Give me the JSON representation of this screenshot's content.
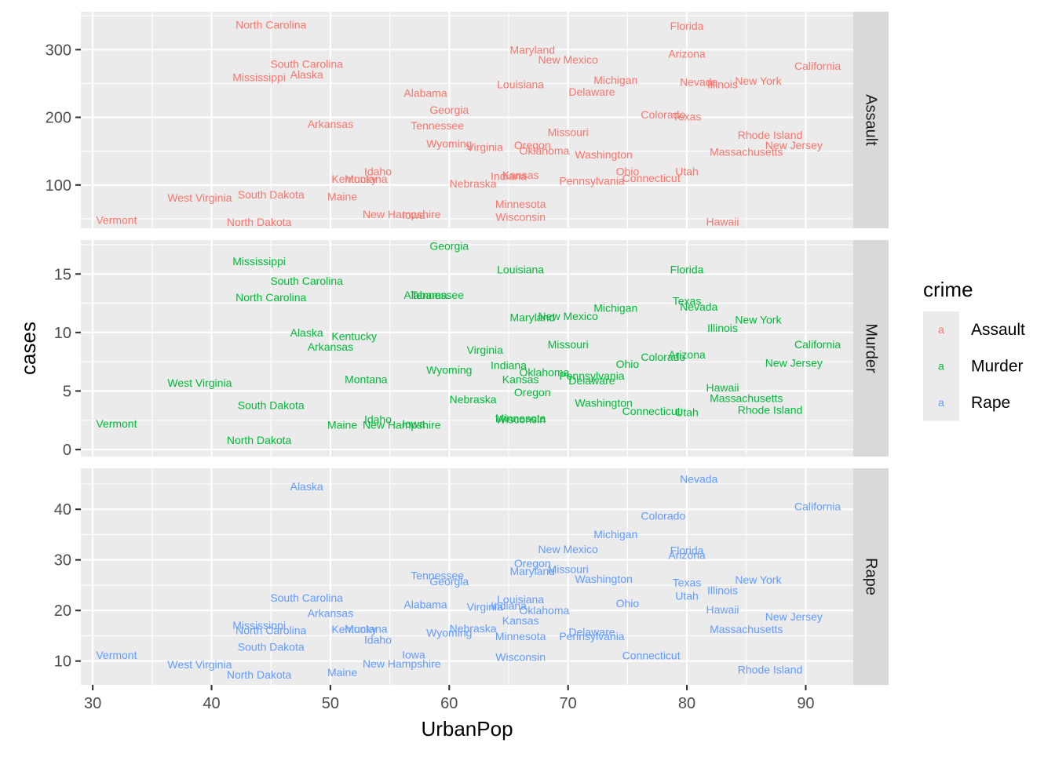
{
  "chart_data": {
    "type": "scatter",
    "geom": "text",
    "facet_by": "crime",
    "xlabel": "UrbanPop",
    "ylabel": "cases",
    "xlim": [
      29,
      94
    ],
    "x_ticks": [
      30,
      40,
      50,
      60,
      70,
      80,
      90
    ],
    "legend": {
      "title": "crime",
      "placement": "right",
      "key_glyph": "a",
      "entries": [
        {
          "name": "Assault",
          "color": "#F8766D"
        },
        {
          "name": "Murder",
          "color": "#00BA38"
        },
        {
          "name": "Rape",
          "color": "#619CFF"
        }
      ]
    },
    "panels": [
      {
        "strip": "Assault",
        "color": "#F8766D",
        "ylim": [
          36,
          356
        ],
        "y_ticks": [
          100,
          200,
          300
        ],
        "points": [
          {
            "label": "Alabama",
            "x": 58,
            "y": 236
          },
          {
            "label": "Alaska",
            "x": 48,
            "y": 263
          },
          {
            "label": "Arizona",
            "x": 80,
            "y": 294
          },
          {
            "label": "Arkansas",
            "x": 50,
            "y": 190
          },
          {
            "label": "California",
            "x": 91,
            "y": 276
          },
          {
            "label": "Colorado",
            "x": 78,
            "y": 204
          },
          {
            "label": "Connecticut",
            "x": 77,
            "y": 110
          },
          {
            "label": "Delaware",
            "x": 72,
            "y": 238
          },
          {
            "label": "Florida",
            "x": 80,
            "y": 335
          },
          {
            "label": "Georgia",
            "x": 60,
            "y": 211
          },
          {
            "label": "Hawaii",
            "x": 83,
            "y": 46
          },
          {
            "label": "Idaho",
            "x": 54,
            "y": 120
          },
          {
            "label": "Illinois",
            "x": 83,
            "y": 249
          },
          {
            "label": "Indiana",
            "x": 65,
            "y": 113
          },
          {
            "label": "Iowa",
            "x": 57,
            "y": 56
          },
          {
            "label": "Kansas",
            "x": 66,
            "y": 115
          },
          {
            "label": "Kentucky",
            "x": 52,
            "y": 109
          },
          {
            "label": "Louisiana",
            "x": 66,
            "y": 249
          },
          {
            "label": "Maine",
            "x": 51,
            "y": 83
          },
          {
            "label": "Maryland",
            "x": 67,
            "y": 300
          },
          {
            "label": "Massachusetts",
            "x": 85,
            "y": 149
          },
          {
            "label": "Michigan",
            "x": 74,
            "y": 255
          },
          {
            "label": "Minnesota",
            "x": 66,
            "y": 72
          },
          {
            "label": "Mississippi",
            "x": 44,
            "y": 259
          },
          {
            "label": "Missouri",
            "x": 70,
            "y": 178
          },
          {
            "label": "Montana",
            "x": 53,
            "y": 109
          },
          {
            "label": "Nebraska",
            "x": 62,
            "y": 102
          },
          {
            "label": "Nevada",
            "x": 81,
            "y": 252
          },
          {
            "label": "New Hampshire",
            "x": 56,
            "y": 57
          },
          {
            "label": "New Jersey",
            "x": 89,
            "y": 159
          },
          {
            "label": "New Mexico",
            "x": 70,
            "y": 285
          },
          {
            "label": "New York",
            "x": 86,
            "y": 254
          },
          {
            "label": "North Carolina",
            "x": 45,
            "y": 337
          },
          {
            "label": "North Dakota",
            "x": 44,
            "y": 45
          },
          {
            "label": "Ohio",
            "x": 75,
            "y": 120
          },
          {
            "label": "Oklahoma",
            "x": 68,
            "y": 151
          },
          {
            "label": "Oregon",
            "x": 67,
            "y": 159
          },
          {
            "label": "Pennsylvania",
            "x": 72,
            "y": 106
          },
          {
            "label": "Rhode Island",
            "x": 87,
            "y": 174
          },
          {
            "label": "South Carolina",
            "x": 48,
            "y": 279
          },
          {
            "label": "South Dakota",
            "x": 45,
            "y": 86
          },
          {
            "label": "Tennessee",
            "x": 59,
            "y": 188
          },
          {
            "label": "Texas",
            "x": 80,
            "y": 201
          },
          {
            "label": "Utah",
            "x": 80,
            "y": 120
          },
          {
            "label": "Vermont",
            "x": 32,
            "y": 48
          },
          {
            "label": "Virginia",
            "x": 63,
            "y": 156
          },
          {
            "label": "Washington",
            "x": 73,
            "y": 145
          },
          {
            "label": "West Virginia",
            "x": 39,
            "y": 81
          },
          {
            "label": "Wisconsin",
            "x": 66,
            "y": 53
          },
          {
            "label": "Wyoming",
            "x": 60,
            "y": 161
          }
        ]
      },
      {
        "strip": "Murder",
        "color": "#00BA38",
        "ylim": [
          -0.6,
          17.9
        ],
        "y_ticks": [
          0,
          5,
          10,
          15
        ],
        "points": [
          {
            "label": "Alabama",
            "x": 58,
            "y": 13.2
          },
          {
            "label": "Alaska",
            "x": 48,
            "y": 10.0
          },
          {
            "label": "Arizona",
            "x": 80,
            "y": 8.1
          },
          {
            "label": "Arkansas",
            "x": 50,
            "y": 8.8
          },
          {
            "label": "California",
            "x": 91,
            "y": 9.0
          },
          {
            "label": "Colorado",
            "x": 78,
            "y": 7.9
          },
          {
            "label": "Connecticut",
            "x": 77,
            "y": 3.3
          },
          {
            "label": "Delaware",
            "x": 72,
            "y": 5.9
          },
          {
            "label": "Florida",
            "x": 80,
            "y": 15.4
          },
          {
            "label": "Georgia",
            "x": 60,
            "y": 17.4
          },
          {
            "label": "Hawaii",
            "x": 83,
            "y": 5.3
          },
          {
            "label": "Idaho",
            "x": 54,
            "y": 2.6
          },
          {
            "label": "Illinois",
            "x": 83,
            "y": 10.4
          },
          {
            "label": "Indiana",
            "x": 65,
            "y": 7.2
          },
          {
            "label": "Iowa",
            "x": 57,
            "y": 2.2
          },
          {
            "label": "Kansas",
            "x": 66,
            "y": 6.0
          },
          {
            "label": "Kentucky",
            "x": 52,
            "y": 9.7
          },
          {
            "label": "Louisiana",
            "x": 66,
            "y": 15.4
          },
          {
            "label": "Maine",
            "x": 51,
            "y": 2.1
          },
          {
            "label": "Maryland",
            "x": 67,
            "y": 11.3
          },
          {
            "label": "Massachusetts",
            "x": 85,
            "y": 4.4
          },
          {
            "label": "Michigan",
            "x": 74,
            "y": 12.1
          },
          {
            "label": "Minnesota",
            "x": 66,
            "y": 2.7
          },
          {
            "label": "Mississippi",
            "x": 44,
            "y": 16.1
          },
          {
            "label": "Missouri",
            "x": 70,
            "y": 9.0
          },
          {
            "label": "Montana",
            "x": 53,
            "y": 6.0
          },
          {
            "label": "Nebraska",
            "x": 62,
            "y": 4.3
          },
          {
            "label": "Nevada",
            "x": 81,
            "y": 12.2
          },
          {
            "label": "New Hampshire",
            "x": 56,
            "y": 2.1
          },
          {
            "label": "New Jersey",
            "x": 89,
            "y": 7.4
          },
          {
            "label": "New Mexico",
            "x": 70,
            "y": 11.4
          },
          {
            "label": "New York",
            "x": 86,
            "y": 11.1
          },
          {
            "label": "North Carolina",
            "x": 45,
            "y": 13.0
          },
          {
            "label": "North Dakota",
            "x": 44,
            "y": 0.8
          },
          {
            "label": "Ohio",
            "x": 75,
            "y": 7.3
          },
          {
            "label": "Oklahoma",
            "x": 68,
            "y": 6.6
          },
          {
            "label": "Oregon",
            "x": 67,
            "y": 4.9
          },
          {
            "label": "Pennsylvania",
            "x": 72,
            "y": 6.3
          },
          {
            "label": "Rhode Island",
            "x": 87,
            "y": 3.4
          },
          {
            "label": "South Carolina",
            "x": 48,
            "y": 14.4
          },
          {
            "label": "South Dakota",
            "x": 45,
            "y": 3.8
          },
          {
            "label": "Tennessee",
            "x": 59,
            "y": 13.2
          },
          {
            "label": "Texas",
            "x": 80,
            "y": 12.7
          },
          {
            "label": "Utah",
            "x": 80,
            "y": 3.2
          },
          {
            "label": "Vermont",
            "x": 32,
            "y": 2.2
          },
          {
            "label": "Virginia",
            "x": 63,
            "y": 8.5
          },
          {
            "label": "Washington",
            "x": 73,
            "y": 4.0
          },
          {
            "label": "West Virginia",
            "x": 39,
            "y": 5.7
          },
          {
            "label": "Wisconsin",
            "x": 66,
            "y": 2.6
          },
          {
            "label": "Wyoming",
            "x": 60,
            "y": 6.8
          }
        ]
      },
      {
        "strip": "Rape",
        "color": "#619CFF",
        "ylim": [
          5.3,
          48.1
        ],
        "y_ticks": [
          10,
          20,
          30,
          40
        ],
        "points": [
          {
            "label": "Alabama",
            "x": 58,
            "y": 21.2
          },
          {
            "label": "Alaska",
            "x": 48,
            "y": 44.5
          },
          {
            "label": "Arizona",
            "x": 80,
            "y": 31.0
          },
          {
            "label": "Arkansas",
            "x": 50,
            "y": 19.5
          },
          {
            "label": "California",
            "x": 91,
            "y": 40.6
          },
          {
            "label": "Colorado",
            "x": 78,
            "y": 38.7
          },
          {
            "label": "Connecticut",
            "x": 77,
            "y": 11.1
          },
          {
            "label": "Delaware",
            "x": 72,
            "y": 15.8
          },
          {
            "label": "Florida",
            "x": 80,
            "y": 31.9
          },
          {
            "label": "Georgia",
            "x": 60,
            "y": 25.8
          },
          {
            "label": "Hawaii",
            "x": 83,
            "y": 20.2
          },
          {
            "label": "Idaho",
            "x": 54,
            "y": 14.2
          },
          {
            "label": "Illinois",
            "x": 83,
            "y": 24.0
          },
          {
            "label": "Indiana",
            "x": 65,
            "y": 21.0
          },
          {
            "label": "Iowa",
            "x": 57,
            "y": 11.3
          },
          {
            "label": "Kansas",
            "x": 66,
            "y": 18.0
          },
          {
            "label": "Kentucky",
            "x": 52,
            "y": 16.3
          },
          {
            "label": "Louisiana",
            "x": 66,
            "y": 22.2
          },
          {
            "label": "Maine",
            "x": 51,
            "y": 7.8
          },
          {
            "label": "Maryland",
            "x": 67,
            "y": 27.8
          },
          {
            "label": "Massachusetts",
            "x": 85,
            "y": 16.3
          },
          {
            "label": "Michigan",
            "x": 74,
            "y": 35.1
          },
          {
            "label": "Minnesota",
            "x": 66,
            "y": 14.9
          },
          {
            "label": "Mississippi",
            "x": 44,
            "y": 17.1
          },
          {
            "label": "Missouri",
            "x": 70,
            "y": 28.2
          },
          {
            "label": "Montana",
            "x": 53,
            "y": 16.4
          },
          {
            "label": "Nebraska",
            "x": 62,
            "y": 16.5
          },
          {
            "label": "Nevada",
            "x": 81,
            "y": 46.0
          },
          {
            "label": "New Hampshire",
            "x": 56,
            "y": 9.5
          },
          {
            "label": "New Jersey",
            "x": 89,
            "y": 18.8
          },
          {
            "label": "New Mexico",
            "x": 70,
            "y": 32.1
          },
          {
            "label": "New York",
            "x": 86,
            "y": 26.1
          },
          {
            "label": "North Carolina",
            "x": 45,
            "y": 16.1
          },
          {
            "label": "North Dakota",
            "x": 44,
            "y": 7.3
          },
          {
            "label": "Ohio",
            "x": 75,
            "y": 21.4
          },
          {
            "label": "Oklahoma",
            "x": 68,
            "y": 20.0
          },
          {
            "label": "Oregon",
            "x": 67,
            "y": 29.3
          },
          {
            "label": "Pennsylvania",
            "x": 72,
            "y": 14.9
          },
          {
            "label": "Rhode Island",
            "x": 87,
            "y": 8.3
          },
          {
            "label": "South Carolina",
            "x": 48,
            "y": 22.5
          },
          {
            "label": "South Dakota",
            "x": 45,
            "y": 12.8
          },
          {
            "label": "Tennessee",
            "x": 59,
            "y": 26.9
          },
          {
            "label": "Texas",
            "x": 80,
            "y": 25.5
          },
          {
            "label": "Utah",
            "x": 80,
            "y": 22.9
          },
          {
            "label": "Vermont",
            "x": 32,
            "y": 11.2
          },
          {
            "label": "Virginia",
            "x": 63,
            "y": 20.7
          },
          {
            "label": "Washington",
            "x": 73,
            "y": 26.2
          },
          {
            "label": "West Virginia",
            "x": 39,
            "y": 9.3
          },
          {
            "label": "Wisconsin",
            "x": 66,
            "y": 10.8
          },
          {
            "label": "Wyoming",
            "x": 60,
            "y": 15.6
          }
        ]
      }
    ]
  }
}
